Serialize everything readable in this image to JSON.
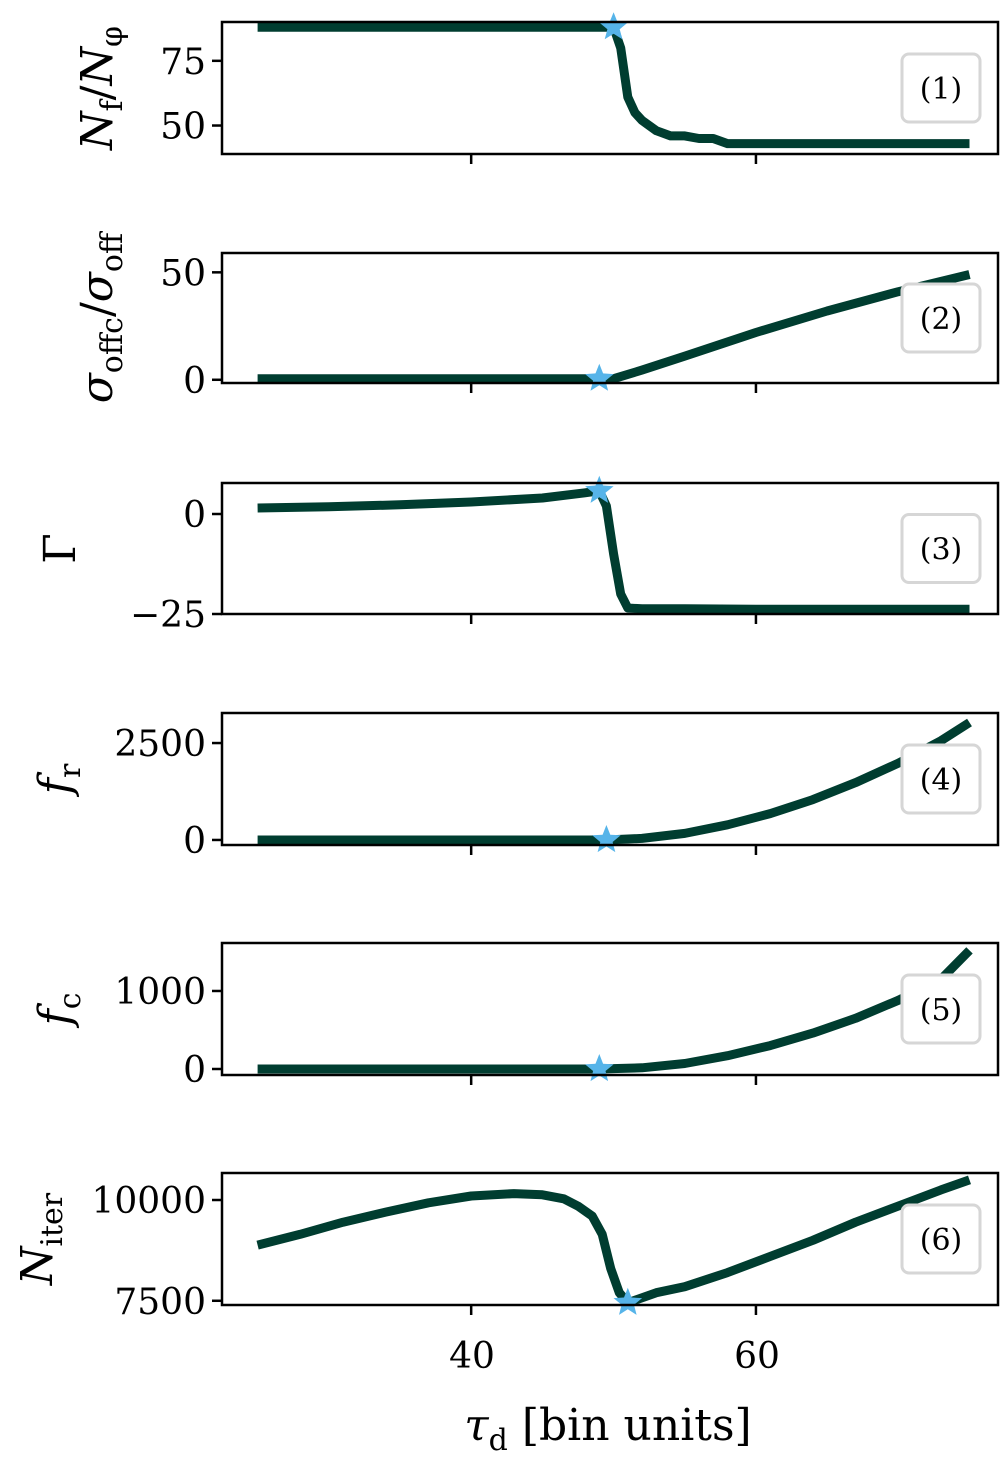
{
  "figure": {
    "xlabel": "τd [bin units]",
    "xlabel_main": "τ",
    "xlabel_sub": "d",
    "xlabel_rest": " [bin units]",
    "xticks": [
      "40",
      "60"
    ],
    "line_color": "#003d30",
    "marker_color": "#56b4e9",
    "tag_border_color": "#d6d6d6"
  },
  "chart_data": [
    {
      "type": "line",
      "panel_tag": "(1)",
      "title": "",
      "xlabel": "τd [bin units]",
      "ylabel": "N_f / N_φ",
      "ylabel_parts": {
        "main1": "N",
        "sub1": "f",
        "slash": "/",
        "main2": "N",
        "sub2": "φ"
      },
      "xlim": [
        22.5,
        77
      ],
      "ylim": [
        39,
        90
      ],
      "yticks": [
        "75",
        "50"
      ],
      "ytick_values": [
        75,
        50
      ],
      "x": [
        25,
        30,
        35,
        40,
        45,
        48,
        50,
        50.5,
        51,
        51.5,
        52,
        53,
        54,
        55,
        56,
        57,
        58,
        60,
        65,
        70,
        75
      ],
      "y": [
        88,
        88,
        88,
        88,
        88,
        88,
        88,
        80,
        61,
        55,
        52,
        48,
        46,
        46,
        45,
        45,
        43,
        43,
        43,
        43,
        43
      ],
      "marker": {
        "x": 50,
        "y": 88,
        "shape": "star"
      }
    },
    {
      "type": "line",
      "panel_tag": "(2)",
      "ylabel": "σ_offc / σ_off",
      "ylabel_parts": {
        "main1": "σ",
        "sub1": "offc",
        "slash": "/",
        "main2": "σ",
        "sub2": "off"
      },
      "xlim": [
        22.5,
        77
      ],
      "ylim": [
        -1.5,
        59
      ],
      "yticks": [
        "50",
        "0"
      ],
      "ytick_values": [
        50,
        0
      ],
      "x": [
        25,
        30,
        35,
        40,
        45,
        49,
        50,
        52,
        55,
        60,
        65,
        70,
        75
      ],
      "y": [
        0.5,
        0.5,
        0.5,
        0.5,
        0.5,
        0.5,
        0.5,
        4.5,
        11,
        22,
        32,
        41,
        49
      ],
      "marker": {
        "x": 49,
        "y": 0.5,
        "shape": "star"
      }
    },
    {
      "type": "line",
      "panel_tag": "(3)",
      "ylabel": "Γ",
      "xlim": [
        22.5,
        77
      ],
      "ylim": [
        -25,
        7.75
      ],
      "yticks": [
        "0",
        "−25"
      ],
      "ytick_values": [
        0,
        -25
      ],
      "x": [
        25,
        30,
        35,
        40,
        45,
        48,
        49,
        49.5,
        50,
        50.5,
        51,
        52,
        55,
        60,
        65,
        70,
        75
      ],
      "y": [
        1.5,
        1.8,
        2.3,
        3.0,
        4.0,
        5.3,
        5.8,
        2,
        -10,
        -20,
        -23.5,
        -23.7,
        -23.7,
        -23.8,
        -23.8,
        -23.8,
        -23.8
      ],
      "marker": {
        "x": 49,
        "y": 5.8,
        "shape": "star"
      }
    },
    {
      "type": "line",
      "panel_tag": "(4)",
      "ylabel": "f_r",
      "ylabel_parts": {
        "main1": "f",
        "sub1": "r"
      },
      "xlim": [
        22.5,
        77
      ],
      "ylim": [
        -130,
        3275
      ],
      "yticks": [
        "2500",
        "0"
      ],
      "ytick_values": [
        2500,
        0
      ],
      "x": [
        25,
        30,
        35,
        40,
        45,
        49.5,
        52,
        55,
        58,
        61,
        64,
        67,
        70,
        73,
        75
      ],
      "y": [
        0,
        0,
        0,
        0,
        0,
        0,
        40,
        170,
        390,
        680,
        1040,
        1480,
        1980,
        2560,
        3030
      ],
      "marker": {
        "x": 49.5,
        "y": 0,
        "shape": "star"
      }
    },
    {
      "type": "line",
      "panel_tag": "(5)",
      "ylabel": "f_c",
      "ylabel_parts": {
        "main1": "f",
        "sub1": "c"
      },
      "xlim": [
        22.5,
        77
      ],
      "ylim": [
        -77,
        1615
      ],
      "yticks": [
        "1000",
        "0"
      ],
      "ytick_values": [
        1000,
        0
      ],
      "x": [
        25,
        30,
        35,
        40,
        45,
        49,
        52,
        55,
        58,
        61,
        64,
        67,
        70,
        73,
        75
      ],
      "y": [
        0,
        0,
        0,
        0,
        0,
        0,
        15,
        70,
        170,
        300,
        460,
        650,
        880,
        1150,
        1520
      ],
      "marker": {
        "x": 49,
        "y": 0,
        "shape": "star"
      }
    },
    {
      "type": "line",
      "panel_tag": "(6)",
      "ylabel": "N_iter",
      "ylabel_parts": {
        "main1": "N",
        "sub1": "iter"
      },
      "xlim": [
        22.5,
        77
      ],
      "ylim": [
        7395,
        10670
      ],
      "yticks": [
        "10000",
        "7500"
      ],
      "ytick_values": [
        10000,
        7500
      ],
      "x": [
        25,
        28,
        31,
        34,
        37,
        40,
        43,
        45,
        46.5,
        47.5,
        48.5,
        49.2,
        49.8,
        50.4,
        51,
        53,
        55,
        58,
        61,
        64,
        67,
        70,
        73,
        75
      ],
      "y": [
        8880,
        9150,
        9450,
        9700,
        9930,
        10100,
        10160,
        10130,
        10030,
        9850,
        9600,
        9150,
        8300,
        7700,
        7450,
        7700,
        7850,
        8200,
        8600,
        9000,
        9450,
        9850,
        10250,
        10500
      ],
      "marker": {
        "x": 51,
        "y": 7450,
        "shape": "star"
      }
    }
  ]
}
